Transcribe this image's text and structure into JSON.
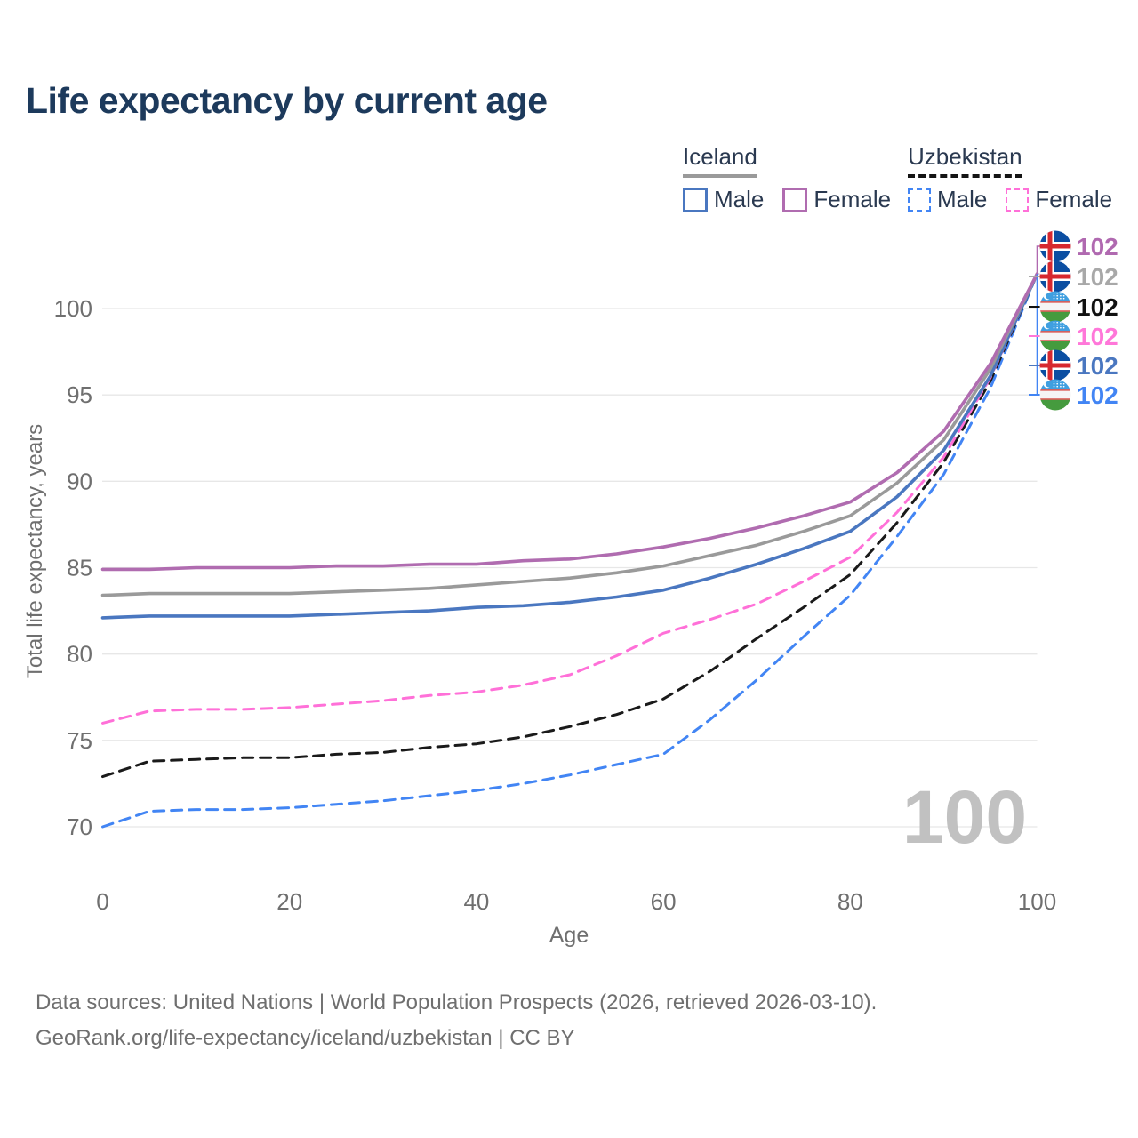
{
  "title": "Life expectancy by current age",
  "legend": {
    "groups": [
      {
        "label": "Iceland",
        "line_style": "solid",
        "line_color": "#9a9a9a",
        "items": [
          {
            "label": "Male",
            "color": "#4a77c0",
            "style": "solid"
          },
          {
            "label": "Female",
            "color": "#b06cb0",
            "style": "solid"
          }
        ]
      },
      {
        "label": "Uzbekistan",
        "line_style": "dashed",
        "line_color": "#141414",
        "items": [
          {
            "label": "Male",
            "color": "#4285f4",
            "style": "dashed"
          },
          {
            "label": "Female",
            "color": "#ff70d8",
            "style": "dashed"
          }
        ]
      }
    ]
  },
  "footer": {
    "line1": "Data sources: United Nations | World Population Prospects (2026, retrieved 2026-03-10).",
    "line2": "GeoRank.org/life-expectancy/iceland/uzbekistan | CC BY"
  },
  "chart_data": {
    "type": "line",
    "title": "Life expectancy by current age",
    "xlabel": "Age",
    "ylabel": "Total life expectancy, years",
    "x_ticks": [
      0,
      20,
      40,
      60,
      80,
      100
    ],
    "y_ticks": [
      70,
      75,
      80,
      85,
      90,
      95,
      100
    ],
    "xlim": [
      0,
      100
    ],
    "ylim": [
      69,
      103
    ],
    "grid": "horizontal-only",
    "watermark": "100",
    "x": [
      0,
      5,
      10,
      15,
      20,
      25,
      30,
      35,
      40,
      45,
      50,
      55,
      60,
      65,
      70,
      75,
      80,
      85,
      90,
      95,
      100
    ],
    "series": [
      {
        "id": "iceland-female",
        "name": "Iceland Female",
        "country": "Iceland",
        "sex": "Female",
        "style": "solid",
        "color": "#b06cb0",
        "values": [
          84.9,
          84.9,
          85.0,
          85.0,
          85.0,
          85.1,
          85.1,
          85.2,
          85.2,
          85.4,
          85.5,
          85.8,
          86.2,
          86.7,
          87.3,
          88.0,
          88.8,
          90.5,
          92.9,
          96.8,
          102
        ]
      },
      {
        "id": "iceland-total",
        "name": "Iceland (both sexes)",
        "country": "Iceland",
        "sex": "Both",
        "style": "solid",
        "color": "#9a9a9a",
        "values": [
          83.4,
          83.5,
          83.5,
          83.5,
          83.5,
          83.6,
          83.7,
          83.8,
          84.0,
          84.2,
          84.4,
          84.7,
          85.1,
          85.7,
          86.3,
          87.1,
          88.0,
          89.9,
          92.4,
          96.5,
          102
        ]
      },
      {
        "id": "iceland-male",
        "name": "Iceland Male",
        "country": "Iceland",
        "sex": "Male",
        "style": "solid",
        "color": "#4a77c0",
        "values": [
          82.1,
          82.2,
          82.2,
          82.2,
          82.2,
          82.3,
          82.4,
          82.5,
          82.7,
          82.8,
          83.0,
          83.3,
          83.7,
          84.4,
          85.2,
          86.1,
          87.1,
          89.1,
          91.8,
          96.1,
          102
        ]
      },
      {
        "id": "uzbekistan-female",
        "name": "Uzbekistan Female",
        "country": "Uzbekistan",
        "sex": "Female",
        "style": "dashed",
        "color": "#ff70d8",
        "values": [
          76.0,
          76.7,
          76.8,
          76.8,
          76.9,
          77.1,
          77.3,
          77.6,
          77.8,
          78.2,
          78.8,
          79.9,
          81.2,
          82.0,
          82.9,
          84.2,
          85.6,
          88.2,
          91.4,
          96.0,
          102
        ]
      },
      {
        "id": "uzbekistan-total",
        "name": "Uzbekistan (both sexes)",
        "country": "Uzbekistan",
        "sex": "Both",
        "style": "dashed",
        "color": "#1a1a1a",
        "values": [
          72.9,
          73.8,
          73.9,
          74.0,
          74.0,
          74.2,
          74.3,
          74.6,
          74.8,
          75.2,
          75.8,
          76.5,
          77.4,
          79.0,
          80.9,
          82.7,
          84.6,
          87.6,
          91.1,
          95.8,
          102
        ]
      },
      {
        "id": "uzbekistan-male",
        "name": "Uzbekistan Male",
        "country": "Uzbekistan",
        "sex": "Male",
        "style": "dashed",
        "color": "#4285f4",
        "values": [
          70.0,
          70.9,
          71.0,
          71.0,
          71.1,
          71.3,
          71.5,
          71.8,
          72.1,
          72.5,
          73.0,
          73.6,
          74.2,
          76.2,
          78.5,
          81.0,
          83.4,
          86.8,
          90.4,
          95.4,
          102
        ]
      }
    ],
    "end_labels": [
      {
        "flag": "iceland",
        "value": "102",
        "color": "#b069b0",
        "series": "iceland-female"
      },
      {
        "flag": "iceland",
        "value": "102",
        "color": "#a8a8a8",
        "series": "iceland-total"
      },
      {
        "flag": "uzbekistan",
        "value": "102",
        "color": "#111111",
        "series": "uzbekistan-total"
      },
      {
        "flag": "uzbekistan",
        "value": "102",
        "color": "#ff77d9",
        "series": "uzbekistan-female"
      },
      {
        "flag": "iceland",
        "value": "102",
        "color": "#4a77c0",
        "series": "iceland-male"
      },
      {
        "flag": "uzbekistan",
        "value": "102",
        "color": "#4285f4",
        "series": "uzbekistan-male"
      }
    ]
  }
}
